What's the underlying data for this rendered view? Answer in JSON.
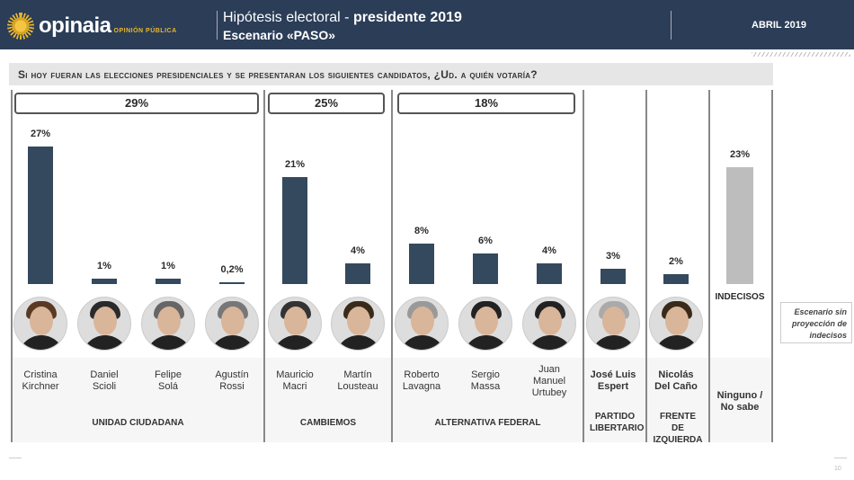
{
  "header": {
    "brand": "opinaia",
    "brand_sub": "OPINIÓN PÚBLICA",
    "title_light": "Hipótesis electoral - ",
    "title_bold": "presidente 2019",
    "subtitle": "Escenario «PASO»",
    "date": "ABRIL 2019"
  },
  "question": "Si hoy fueran las elecciones presidenciales y se presentaran los siguientes candidatos, ¿Ud. a quién votaría?",
  "side_note": "Escenario sin proyección de indecisos",
  "page_number": "10",
  "colors": {
    "header": "#2b3d57",
    "bar": "#34495e",
    "undecided_bar": "#bdbdbd",
    "logo": "#e8b730"
  },
  "chart_data": {
    "type": "bar",
    "ylim": [
      0,
      30
    ],
    "grid": false,
    "groups": [
      {
        "party": "UNIDAD CIUDADANA",
        "total": "29%"
      },
      {
        "party": "CAMBIEMOS",
        "total": "25%"
      },
      {
        "party": "ALTERNATIVA FEDERAL",
        "total": "18%"
      },
      {
        "party": "PARTIDO LIBERTARIO"
      },
      {
        "party": "FRENTE DE IZQUIERDA"
      }
    ],
    "categories": [
      "Cristina Kirchner",
      "Daniel Scioli",
      "Felipe Solá",
      "Agustín Rossi",
      "Mauricio Macri",
      "Martín Lousteau",
      "Roberto Lavagna",
      "Sergio Massa",
      "Juan Manuel Urtubey",
      "José Luis Espert",
      "Nicolás Del Caño",
      "Ninguno / No sabe"
    ],
    "name_lines": [
      [
        "Cristina",
        "Kirchner"
      ],
      [
        "Daniel",
        "Scioli"
      ],
      [
        "Felipe",
        "Solá"
      ],
      [
        "Agustín",
        "Rossi"
      ],
      [
        "Mauricio",
        "Macri"
      ],
      [
        "Martín",
        "Lousteau"
      ],
      [
        "Roberto",
        "Lavagna"
      ],
      [
        "Sergio",
        "Massa"
      ],
      [
        "Juan",
        "Manuel",
        "Urtubey"
      ],
      [
        "José Luis",
        "Espert"
      ],
      [
        "Nicolás",
        "Del Caño"
      ],
      [
        "Ninguno /",
        "No sabe"
      ]
    ],
    "values": [
      27,
      1,
      1,
      0.2,
      21,
      4,
      8,
      6,
      4,
      3,
      2,
      23
    ],
    "labels": [
      "27%",
      "1%",
      "1%",
      "0,2%",
      "21%",
      "4%",
      "8%",
      "6%",
      "4%",
      "3%",
      "2%",
      "23%"
    ],
    "undecided_label": "INDECISOS"
  }
}
